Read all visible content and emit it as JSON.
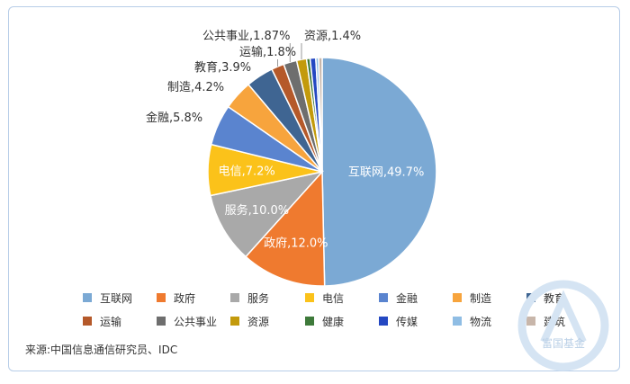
{
  "chart_data": {
    "type": "pie",
    "slices": [
      {
        "name": "互联网",
        "value": 49.7,
        "label": "互联网,49.7%",
        "color": "#7ba9d4",
        "label_inside": true
      },
      {
        "name": "政府",
        "value": 12.0,
        "label": "政府,12.0%",
        "color": "#ef7a2f",
        "label_inside": true
      },
      {
        "name": "服务",
        "value": 10.0,
        "label": "服务,10.0%",
        "color": "#a9a9a9",
        "label_inside": true
      },
      {
        "name": "电信",
        "value": 7.2,
        "label": "电信,7.2%",
        "color": "#fbc21a",
        "label_inside": true
      },
      {
        "name": "金融",
        "value": 5.8,
        "label": "金融,5.8%",
        "color": "#5a84cf",
        "label_inside": false
      },
      {
        "name": "制造",
        "value": 4.2,
        "label": "制造,4.2%",
        "color": "#f7a43d",
        "label_inside": false
      },
      {
        "name": "教育",
        "value": 3.9,
        "label": "教育,3.9%",
        "color": "#3f6592",
        "label_inside": false
      },
      {
        "name": "运输",
        "value": 1.8,
        "label": "运输,1.8%",
        "color": "#b5592a",
        "label_inside": false
      },
      {
        "name": "公共事业",
        "value": 1.87,
        "label": "公共事业,1.87%",
        "color": "#6e6e6e",
        "label_inside": false
      },
      {
        "name": "资源",
        "value": 1.4,
        "label": "资源,1.4%",
        "color": "#c39a0c",
        "label_inside": false
      },
      {
        "name": "健康",
        "value": 0.5,
        "label": "",
        "color": "#3e7a3a",
        "label_inside": false
      },
      {
        "name": "传媒",
        "value": 0.8,
        "label": "",
        "color": "#2448c2",
        "label_inside": false
      },
      {
        "name": "物流",
        "value": 0.4,
        "label": "",
        "color": "#8fbde4",
        "label_inside": false
      },
      {
        "name": "建筑",
        "value": 0.5,
        "label": "",
        "color": "#c8b6aa",
        "label_inside": false
      }
    ],
    "legend": [
      "互联网",
      "政府",
      "服务",
      "电信",
      "金融",
      "制造",
      "教育",
      "运输",
      "公共事业",
      "资源",
      "健康",
      "传媒",
      "物流",
      "建筑"
    ],
    "legend_position": "bottom",
    "title": ""
  },
  "source": "来源:中国信息通信研究员、IDC",
  "watermark_text": "富国基金"
}
